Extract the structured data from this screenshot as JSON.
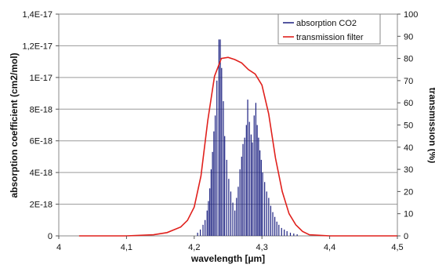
{
  "chart_data": {
    "type": "line",
    "title": "",
    "xlabel": "wavelength [µm]",
    "ylabel_left": "absorption coefficient (cm2/mol)",
    "ylabel_right": "transmission (%)",
    "xlim": [
      4.0,
      4.5
    ],
    "ylim_left": [
      0,
      1.4e-17
    ],
    "ylim_right": [
      0,
      100
    ],
    "x_ticks": [
      "4",
      "4,1",
      "4,2",
      "4,3",
      "4,4",
      "4,5"
    ],
    "y_left_ticks": [
      "0",
      "2E-18",
      "4E-18",
      "6E-18",
      "8E-18",
      "1E-17",
      "1,2E-17",
      "1,4E-17"
    ],
    "y_right_ticks": [
      "0",
      "10",
      "20",
      "30",
      "40",
      "50",
      "60",
      "70",
      "80",
      "90",
      "100"
    ],
    "grid": "horizontal",
    "legend_position": "top-right",
    "colors": {
      "absorption": "#1a1f80",
      "transmission": "#e0201c"
    },
    "series": [
      {
        "name": "absorption CO2",
        "axis": "left",
        "style": "lines",
        "x": [
          4.205,
          4.209,
          4.213,
          4.216,
          4.219,
          4.221,
          4.223,
          4.225,
          4.227,
          4.229,
          4.231,
          4.2335,
          4.2365,
          4.2385,
          4.2405,
          4.243,
          4.245,
          4.248,
          4.251,
          4.254,
          4.257,
          4.26,
          4.2625,
          4.265,
          4.2675,
          4.27,
          4.272,
          4.2745,
          4.277,
          4.279,
          4.2815,
          4.284,
          4.286,
          4.2885,
          4.291,
          4.293,
          4.295,
          4.297,
          4.299,
          4.301,
          4.304,
          4.307,
          4.31,
          4.313,
          4.316,
          4.319,
          4.322,
          4.325,
          4.329,
          4.333,
          4.337,
          4.342,
          4.347,
          4.352
        ],
        "y": [
          2e-19,
          4e-19,
          7e-19,
          1e-18,
          1.6e-18,
          2.2e-18,
          3e-18,
          4.2e-18,
          5.3e-18,
          6.6e-18,
          7.6e-18,
          9.8e-18,
          1.24e-17,
          1.24e-17,
          1.06e-17,
          8.5e-18,
          6.3e-18,
          4.8e-18,
          3.6e-18,
          2.8e-18,
          2.1e-18,
          1.6e-18,
          2.4e-18,
          3.1e-18,
          4.2e-18,
          5e-18,
          5.8e-18,
          6.2e-18,
          7e-18,
          8.6e-18,
          7.2e-18,
          6.4e-18,
          5.9e-18,
          7.6e-18,
          8.4e-18,
          7e-18,
          6.2e-18,
          5.4e-18,
          4.8e-18,
          4e-18,
          3.4e-18,
          2.8e-18,
          2.4e-18,
          1.9e-18,
          1.5e-18,
          1.2e-18,
          9e-19,
          7e-19,
          5e-19,
          4e-19,
          3e-19,
          2e-19,
          1.5e-19,
          1e-19
        ]
      },
      {
        "name": "transmission filter",
        "axis": "right",
        "style": "line",
        "x": [
          4.03,
          4.1,
          4.14,
          4.16,
          4.18,
          4.19,
          4.2,
          4.21,
          4.22,
          4.23,
          4.24,
          4.25,
          4.26,
          4.27,
          4.28,
          4.29,
          4.3,
          4.31,
          4.32,
          4.33,
          4.34,
          4.35,
          4.36,
          4.37,
          4.4,
          4.5
        ],
        "y": [
          0,
          0,
          0.5,
          1.5,
          4,
          7,
          13,
          27,
          52,
          72,
          80,
          80.5,
          79.5,
          78,
          75,
          73,
          68,
          55,
          35,
          20,
          10,
          5,
          2,
          0.5,
          0,
          0
        ]
      }
    ]
  }
}
